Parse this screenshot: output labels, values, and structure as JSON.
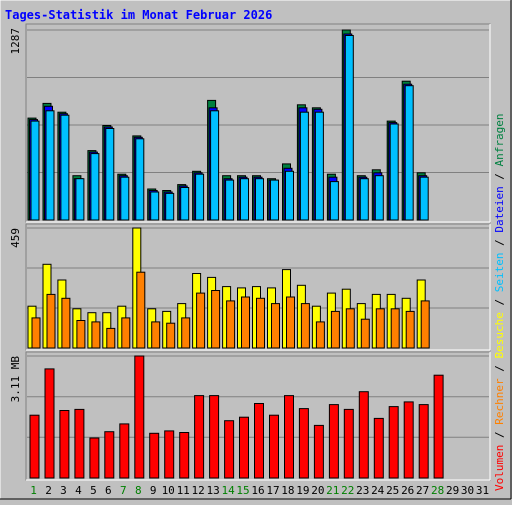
{
  "title": "Tages-Statistik im Monat Februar 2026",
  "colors": {
    "background": "#c0c0c0",
    "title": "#0000ff",
    "anfragen": "#008040",
    "dateien": "#0000ff",
    "seiten": "#00c0ff",
    "besuche": "#ffff00",
    "rechner": "#ff8000",
    "volumen": "#ff0000",
    "weekday_label": "#000000",
    "weekend_label": "#008000"
  },
  "chart_data": [
    {
      "type": "bar",
      "panel": "top",
      "ymax_label": "1287",
      "series": [
        {
          "name": "Anfragen",
          "values": [
            690,
            790,
            730,
            300,
            470,
            640,
            310,
            570,
            210,
            200,
            240,
            330,
            810,
            300,
            300,
            300,
            280,
            380,
            780,
            760,
            310,
            1287,
            300,
            340,
            670,
            940,
            320,
            0,
            0,
            0,
            0
          ]
        },
        {
          "name": "Dateien",
          "values": [
            680,
            770,
            720,
            280,
            460,
            630,
            300,
            560,
            200,
            190,
            230,
            320,
            760,
            280,
            290,
            290,
            270,
            350,
            760,
            750,
            290,
            1260,
            290,
            320,
            660,
            920,
            300,
            0,
            0,
            0,
            0
          ]
        },
        {
          "name": "Seiten",
          "values": [
            670,
            740,
            710,
            280,
            450,
            620,
            290,
            550,
            190,
            180,
            220,
            310,
            740,
            270,
            280,
            280,
            270,
            330,
            730,
            730,
            260,
            1250,
            280,
            300,
            650,
            910,
            290,
            0,
            0,
            0,
            0
          ]
        }
      ],
      "axis_label": {
        "parts": [
          "Anfragen",
          "Dateien",
          "Seiten"
        ],
        "separator": " / "
      }
    },
    {
      "type": "bar",
      "panel": "middle",
      "ymax_label": "459",
      "series": [
        {
          "name": "Besuche",
          "values": [
            160,
            320,
            260,
            150,
            135,
            135,
            160,
            459,
            150,
            140,
            170,
            285,
            270,
            235,
            230,
            235,
            230,
            300,
            240,
            160,
            210,
            225,
            170,
            205,
            205,
            190,
            260,
            0,
            0,
            0,
            0
          ]
        },
        {
          "name": "Rechner",
          "values": [
            115,
            205,
            190,
            105,
            100,
            75,
            115,
            290,
            100,
            95,
            115,
            210,
            220,
            180,
            195,
            190,
            170,
            195,
            170,
            100,
            140,
            150,
            110,
            150,
            150,
            140,
            180,
            0,
            0,
            0,
            0
          ]
        }
      ],
      "axis_label": {
        "parts": [
          "Besuche",
          "Rechner"
        ],
        "separator": " / "
      }
    },
    {
      "type": "bar",
      "panel": "bottom",
      "ymax_label": "3.11 MB",
      "series": [
        {
          "name": "Volumen",
          "values": [
            1.6,
            2.78,
            1.72,
            1.75,
            1.02,
            1.18,
            1.38,
            3.11,
            1.14,
            1.2,
            1.16,
            2.1,
            2.1,
            1.46,
            1.55,
            1.9,
            1.6,
            2.1,
            1.77,
            1.34,
            1.87,
            1.75,
            2.2,
            1.52,
            1.82,
            1.94,
            1.87,
            2.62,
            0,
            0,
            0
          ]
        }
      ],
      "axis_label": {
        "parts": [
          "Volumen"
        ],
        "separator": " / "
      }
    }
  ],
  "days": [
    "1",
    "2",
    "3",
    "4",
    "5",
    "6",
    "7",
    "8",
    "9",
    "10",
    "11",
    "12",
    "13",
    "14",
    "15",
    "16",
    "17",
    "18",
    "19",
    "20",
    "21",
    "22",
    "23",
    "24",
    "25",
    "26",
    "27",
    "28",
    "29",
    "30",
    "31"
  ],
  "weekend_days": [
    1,
    7,
    8,
    14,
    15,
    21,
    22,
    28
  ]
}
